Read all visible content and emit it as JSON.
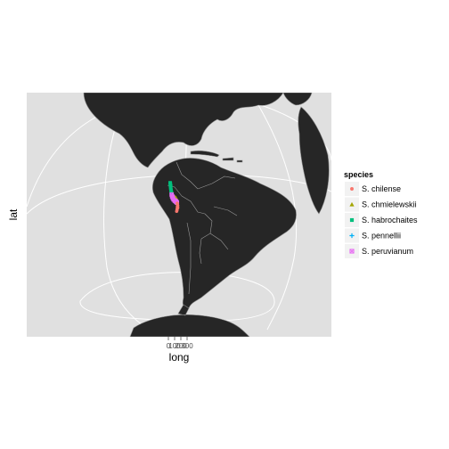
{
  "chart_data": {
    "type": "scatter",
    "subtype": "map-orthographic-projection",
    "title": "",
    "xlabel": "long",
    "ylabel": "lat",
    "x_ticks": [
      "0",
      "100",
      "200",
      "300"
    ],
    "grid": true,
    "background": "#e0e0e0",
    "land_color": "#262626",
    "border_color": "#9a9a9a",
    "graticule_color": "#ffffff",
    "legend": {
      "title": "species",
      "placement": "right",
      "entries": [
        {
          "name": "S. chilense",
          "color": "#f8766d",
          "shape": "circle"
        },
        {
          "name": "S. chmielewskii",
          "color": "#a3a500",
          "shape": "triangle"
        },
        {
          "name": "S. habrochaites",
          "color": "#00bf7d",
          "shape": "square"
        },
        {
          "name": "S. pennellii",
          "color": "#00b0f6",
          "shape": "plus"
        },
        {
          "name": "S. peruvianum",
          "color": "#e76bf3",
          "shape": "square-cross"
        }
      ]
    },
    "series": [
      {
        "name": "S. habrochaites",
        "points": [
          {
            "lon": -79.5,
            "lat": -1.5
          },
          {
            "lon": -79.3,
            "lat": -2.8
          },
          {
            "lon": -79.0,
            "lat": -4.0
          },
          {
            "lon": -78.8,
            "lat": -5.2
          },
          {
            "lon": -78.4,
            "lat": -6.6
          },
          {
            "lon": -78.2,
            "lat": -7.5
          },
          {
            "lon": -77.8,
            "lat": -8.8
          },
          {
            "lon": -77.4,
            "lat": -9.6
          },
          {
            "lon": -79.8,
            "lat": -0.8
          },
          {
            "lon": -78.9,
            "lat": -3.5
          },
          {
            "lon": -77.6,
            "lat": -10.5
          }
        ]
      },
      {
        "name": "S. chmielewskii",
        "points": [
          {
            "lon": -73.5,
            "lat": -13.2
          },
          {
            "lon": -72.8,
            "lat": -13.6
          },
          {
            "lon": -72.2,
            "lat": -13.9
          },
          {
            "lon": -73.0,
            "lat": -14.2
          },
          {
            "lon": -71.9,
            "lat": -14.5
          },
          {
            "lon": -74.1,
            "lat": -13.0
          }
        ]
      },
      {
        "name": "S. pennellii",
        "points": [
          {
            "lon": -76.5,
            "lat": -12.1
          },
          {
            "lon": -75.9,
            "lat": -13.4
          },
          {
            "lon": -75.3,
            "lat": -14.6
          },
          {
            "lon": -74.6,
            "lat": -15.8
          },
          {
            "lon": -76.9,
            "lat": -11.5
          }
        ]
      },
      {
        "name": "S. peruvianum",
        "points": [
          {
            "lon": -77.2,
            "lat": -11.0
          },
          {
            "lon": -76.6,
            "lat": -12.5
          },
          {
            "lon": -75.7,
            "lat": -14.0
          },
          {
            "lon": -74.8,
            "lat": -15.2
          },
          {
            "lon": -73.6,
            "lat": -16.1
          },
          {
            "lon": -72.4,
            "lat": -16.7
          },
          {
            "lon": -71.5,
            "lat": -17.3
          },
          {
            "lon": -76.0,
            "lat": -13.0
          },
          {
            "lon": -73.0,
            "lat": -16.4
          },
          {
            "lon": -72.0,
            "lat": -17.0
          },
          {
            "lon": -70.9,
            "lat": -18.0
          }
        ]
      },
      {
        "name": "S. chilense",
        "points": [
          {
            "lon": -70.6,
            "lat": -18.5
          },
          {
            "lon": -70.2,
            "lat": -19.6
          },
          {
            "lon": -69.8,
            "lat": -20.6
          },
          {
            "lon": -70.1,
            "lat": -21.8
          },
          {
            "lon": -69.9,
            "lat": -22.9
          },
          {
            "lon": -70.3,
            "lat": -23.8
          },
          {
            "lon": -70.2,
            "lat": -24.6
          },
          {
            "lon": -70.5,
            "lat": -25.5
          },
          {
            "lon": -70.0,
            "lat": -21.2
          },
          {
            "lon": -69.6,
            "lat": -22.3
          }
        ]
      }
    ]
  }
}
